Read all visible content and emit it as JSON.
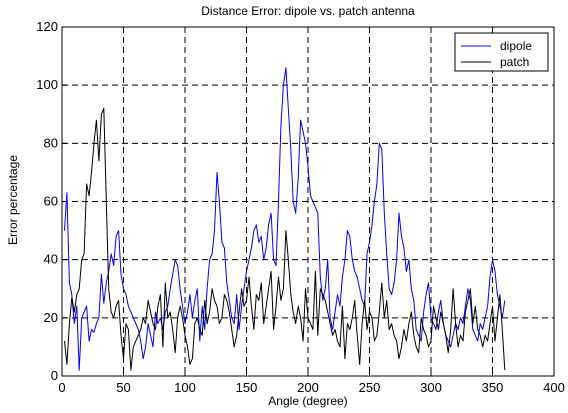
{
  "chart_data": {
    "type": "line",
    "title": "Distance Error: dipole vs. patch antenna",
    "xlabel": "Angle (degree)",
    "ylabel": "Error percentage",
    "xlim": [
      0,
      400
    ],
    "ylim": [
      0,
      120
    ],
    "xticks": [
      0,
      50,
      100,
      150,
      200,
      250,
      300,
      350,
      400
    ],
    "yticks": [
      0,
      20,
      40,
      60,
      80,
      100,
      120
    ],
    "grid": true,
    "grid_style": "dashed",
    "legend_position": "top-right",
    "series": [
      {
        "name": "dipole",
        "color": "#0000ff",
        "x": [
          2,
          4,
          6,
          8,
          10,
          12,
          14,
          16,
          18,
          20,
          22,
          24,
          26,
          28,
          30,
          32,
          34,
          36,
          38,
          40,
          42,
          44,
          46,
          48,
          50,
          52,
          54,
          56,
          58,
          60,
          62,
          64,
          66,
          68,
          70,
          72,
          74,
          76,
          78,
          80,
          82,
          84,
          86,
          88,
          90,
          92,
          94,
          96,
          98,
          100,
          102,
          104,
          106,
          108,
          110,
          112,
          114,
          116,
          118,
          120,
          122,
          124,
          126,
          128,
          130,
          132,
          134,
          136,
          138,
          140,
          142,
          144,
          146,
          148,
          150,
          152,
          154,
          156,
          158,
          160,
          162,
          164,
          166,
          168,
          170,
          172,
          174,
          176,
          178,
          180,
          182,
          184,
          186,
          188,
          190,
          192,
          194,
          196,
          198,
          200,
          202,
          204,
          206,
          208,
          210,
          212,
          214,
          216,
          218,
          220,
          222,
          224,
          226,
          228,
          230,
          232,
          234,
          236,
          238,
          240,
          242,
          244,
          246,
          248,
          250,
          252,
          254,
          256,
          258,
          260,
          262,
          264,
          266,
          268,
          270,
          272,
          274,
          276,
          278,
          280,
          282,
          284,
          286,
          288,
          290,
          292,
          294,
          296,
          298,
          300,
          302,
          304,
          306,
          308,
          310,
          312,
          314,
          316,
          318,
          320,
          322,
          324,
          326,
          328,
          330,
          332,
          334,
          336,
          338,
          340,
          342,
          344,
          346,
          348,
          350,
          352,
          354,
          356,
          358,
          360
        ],
        "y": [
          50,
          63,
          32,
          28,
          18,
          24,
          2,
          20,
          22,
          24,
          12,
          16,
          15,
          18,
          20,
          35,
          25,
          32,
          36,
          42,
          38,
          48,
          50,
          35,
          30,
          28,
          24,
          22,
          20,
          18,
          16,
          12,
          6,
          10,
          18,
          14,
          10,
          22,
          18,
          20,
          16,
          22,
          24,
          30,
          35,
          40,
          38,
          30,
          24,
          18,
          22,
          28,
          20,
          26,
          30,
          12,
          24,
          16,
          30,
          40,
          42,
          50,
          70,
          60,
          46,
          44,
          32,
          26,
          20,
          18,
          28,
          16,
          24,
          30,
          36,
          40,
          44,
          50,
          52,
          46,
          48,
          40,
          44,
          52,
          56,
          40,
          38,
          60,
          86,
          100,
          106,
          92,
          78,
          60,
          56,
          68,
          88,
          84,
          80,
          72,
          62,
          60,
          58,
          56,
          34,
          26,
          30,
          40,
          20,
          16,
          22,
          28,
          24,
          34,
          40,
          50,
          48,
          40,
          36,
          34,
          30,
          26,
          24,
          42,
          46,
          52,
          60,
          66,
          80,
          78,
          56,
          42,
          30,
          28,
          32,
          40,
          56,
          48,
          44,
          36,
          40,
          30,
          26,
          16,
          14,
          12,
          22,
          28,
          32,
          20,
          18,
          16,
          22,
          26,
          18,
          14,
          12,
          10,
          14,
          18,
          16,
          20,
          18,
          24,
          30,
          26,
          16,
          14,
          12,
          18,
          16,
          20,
          24,
          34,
          40,
          36,
          28,
          24,
          20,
          26
        ]
      },
      {
        "name": "patch",
        "color": "#000000",
        "x": [
          2,
          4,
          6,
          8,
          10,
          12,
          14,
          16,
          18,
          20,
          22,
          24,
          26,
          28,
          30,
          32,
          34,
          36,
          38,
          40,
          42,
          44,
          46,
          48,
          50,
          52,
          54,
          56,
          58,
          60,
          62,
          64,
          66,
          68,
          70,
          72,
          74,
          76,
          78,
          80,
          82,
          84,
          86,
          88,
          90,
          92,
          94,
          96,
          98,
          100,
          102,
          104,
          106,
          108,
          110,
          112,
          114,
          116,
          118,
          120,
          122,
          124,
          126,
          128,
          130,
          132,
          134,
          136,
          138,
          140,
          142,
          144,
          146,
          148,
          150,
          152,
          154,
          156,
          158,
          160,
          162,
          164,
          166,
          168,
          170,
          172,
          174,
          176,
          178,
          180,
          182,
          184,
          186,
          188,
          190,
          192,
          194,
          196,
          198,
          200,
          202,
          204,
          206,
          208,
          210,
          212,
          214,
          216,
          218,
          220,
          222,
          224,
          226,
          228,
          230,
          232,
          234,
          236,
          238,
          240,
          242,
          244,
          246,
          248,
          250,
          252,
          254,
          256,
          258,
          260,
          262,
          264,
          266,
          268,
          270,
          272,
          274,
          276,
          278,
          280,
          282,
          284,
          286,
          288,
          290,
          292,
          294,
          296,
          298,
          300,
          302,
          304,
          306,
          308,
          310,
          312,
          314,
          316,
          318,
          320,
          322,
          324,
          326,
          328,
          330,
          332,
          334,
          336,
          338,
          340,
          342,
          344,
          346,
          348,
          350,
          352,
          354,
          356,
          358,
          360
        ],
        "y": [
          12,
          4,
          18,
          27,
          22,
          28,
          30,
          40,
          42,
          66,
          62,
          70,
          80,
          88,
          74,
          90,
          92,
          60,
          30,
          22,
          20,
          24,
          26,
          14,
          6,
          18,
          16,
          2,
          10,
          12,
          14,
          16,
          20,
          18,
          26,
          22,
          18,
          16,
          24,
          28,
          10,
          32,
          20,
          22,
          16,
          8,
          20,
          24,
          20,
          14,
          10,
          4,
          6,
          18,
          20,
          16,
          14,
          26,
          18,
          22,
          30,
          26,
          24,
          18,
          20,
          28,
          26,
          22,
          16,
          10,
          14,
          22,
          30,
          24,
          26,
          34,
          24,
          16,
          28,
          26,
          32,
          18,
          24,
          30,
          36,
          16,
          24,
          34,
          26,
          30,
          50,
          40,
          28,
          22,
          18,
          24,
          20,
          12,
          30,
          20,
          18,
          16,
          36,
          14,
          30,
          28,
          26,
          22,
          18,
          14,
          16,
          12,
          10,
          24,
          6,
          18,
          16,
          20,
          26,
          14,
          4,
          18,
          26,
          16,
          22,
          20,
          12,
          14,
          22,
          32,
          20,
          26,
          16,
          18,
          14,
          12,
          6,
          10,
          16,
          12,
          18,
          22,
          14,
          10,
          8,
          20,
          16,
          14,
          10,
          12,
          24,
          20,
          16,
          22,
          18,
          14,
          8,
          16,
          30,
          18,
          10,
          14,
          12,
          22,
          26,
          30,
          18,
          24,
          16,
          14,
          10,
          14,
          12,
          18,
          24,
          12,
          20,
          28,
          16,
          2
        ]
      }
    ]
  }
}
